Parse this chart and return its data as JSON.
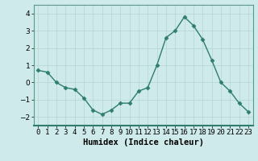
{
  "x": [
    0,
    1,
    2,
    3,
    4,
    5,
    6,
    7,
    8,
    9,
    10,
    11,
    12,
    13,
    14,
    15,
    16,
    17,
    18,
    19,
    20,
    21,
    22,
    23
  ],
  "y": [
    0.7,
    0.6,
    0.0,
    -0.3,
    -0.4,
    -0.9,
    -1.6,
    -1.85,
    -1.6,
    -1.2,
    -1.2,
    -0.5,
    -0.3,
    1.0,
    2.6,
    3.0,
    3.8,
    3.3,
    2.5,
    1.3,
    0.0,
    -0.5,
    -1.2,
    -1.7
  ],
  "line_color": "#2e7d6e",
  "marker": "D",
  "marker_size": 2.5,
  "bg_color": "#ceeaea",
  "grid_color": "#b8d8d8",
  "xlabel": "Humidex (Indice chaleur)",
  "ylim": [
    -2.5,
    4.5
  ],
  "xlim": [
    -0.5,
    23.5
  ],
  "yticks": [
    -2,
    -1,
    0,
    1,
    2,
    3,
    4
  ],
  "xtick_labels": [
    "0",
    "1",
    "2",
    "3",
    "4",
    "5",
    "6",
    "7",
    "8",
    "9",
    "10",
    "11",
    "12",
    "13",
    "14",
    "15",
    "16",
    "17",
    "18",
    "19",
    "20",
    "21",
    "22",
    "23"
  ],
  "xlabel_fontsize": 7.5,
  "tick_fontsize": 6.5
}
